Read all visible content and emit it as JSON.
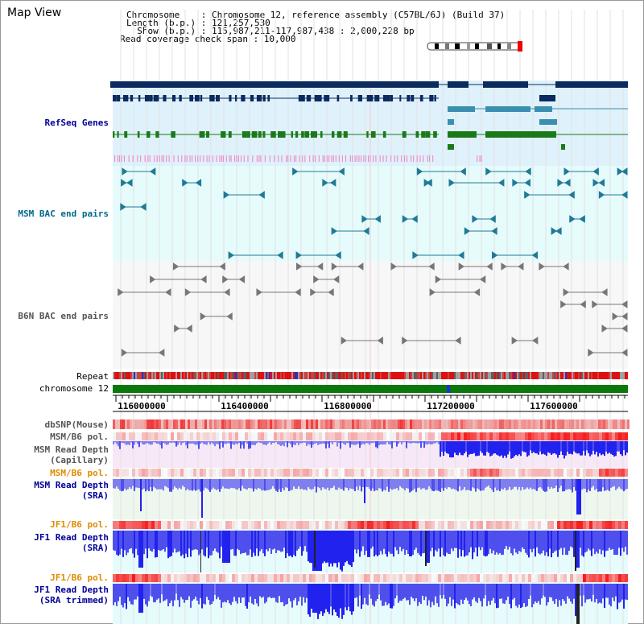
{
  "title": "Map View",
  "info": {
    "chromosome": "Chromosome    : Chromosome 12, reference assembly (C57BL/6J) (Build 37)",
    "length": "Length (b.p.) : 121,257,530",
    "show": "  Show (b.p.) : 115,987,211-117,987,438 : 2,000,228 bp",
    "coverage": "Read coverage check span : 10,000"
  },
  "tracks": {
    "refseq": "RefSeq Genes",
    "msm_bac": "MSM BAC end pairs",
    "b6n_bac": "B6N BAC end pairs",
    "repeat": "Repeat",
    "chromosome": "chromosome 12",
    "dbsnp": "dbSNP(Mouse)",
    "msm_b6_pol_1": "MSM/B6 pol.",
    "msm_depth_cap_1": "MSM Read Depth",
    "msm_depth_cap_2": "(Capillary)",
    "msm_b6_pol_2": "MSM/B6 pol.",
    "msm_depth_sra_1": "MSM Read Depth",
    "msm_depth_sra_2": "(SRA)",
    "jf1_b6_pol_1": "JF1/B6 pol.",
    "jf1_depth_sra_1": "JF1 Read Depth",
    "jf1_depth_sra_2": "(SRA)",
    "jf1_b6_pol_2": "JF1/B6 pol.",
    "jf1_depth_trim_1": "JF1 Read Depth",
    "jf1_depth_trim_2": "(SRA trimmed)"
  },
  "axis": {
    "ticks": [
      "116000000",
      "116400000",
      "116800000",
      "117200000",
      "117600000"
    ]
  },
  "colors": {
    "refseq_bg": "#dff1fb",
    "bac_bg": "#e6fbfb",
    "navy": "#0b2a5e",
    "teal": "#3a8fb0",
    "green": "#1a7a1a",
    "label_navy": "#000099",
    "label_teal": "#006b8a",
    "label_gray": "#555555",
    "label_orange": "#e08a00",
    "depth_blue": "#3333ee"
  }
}
